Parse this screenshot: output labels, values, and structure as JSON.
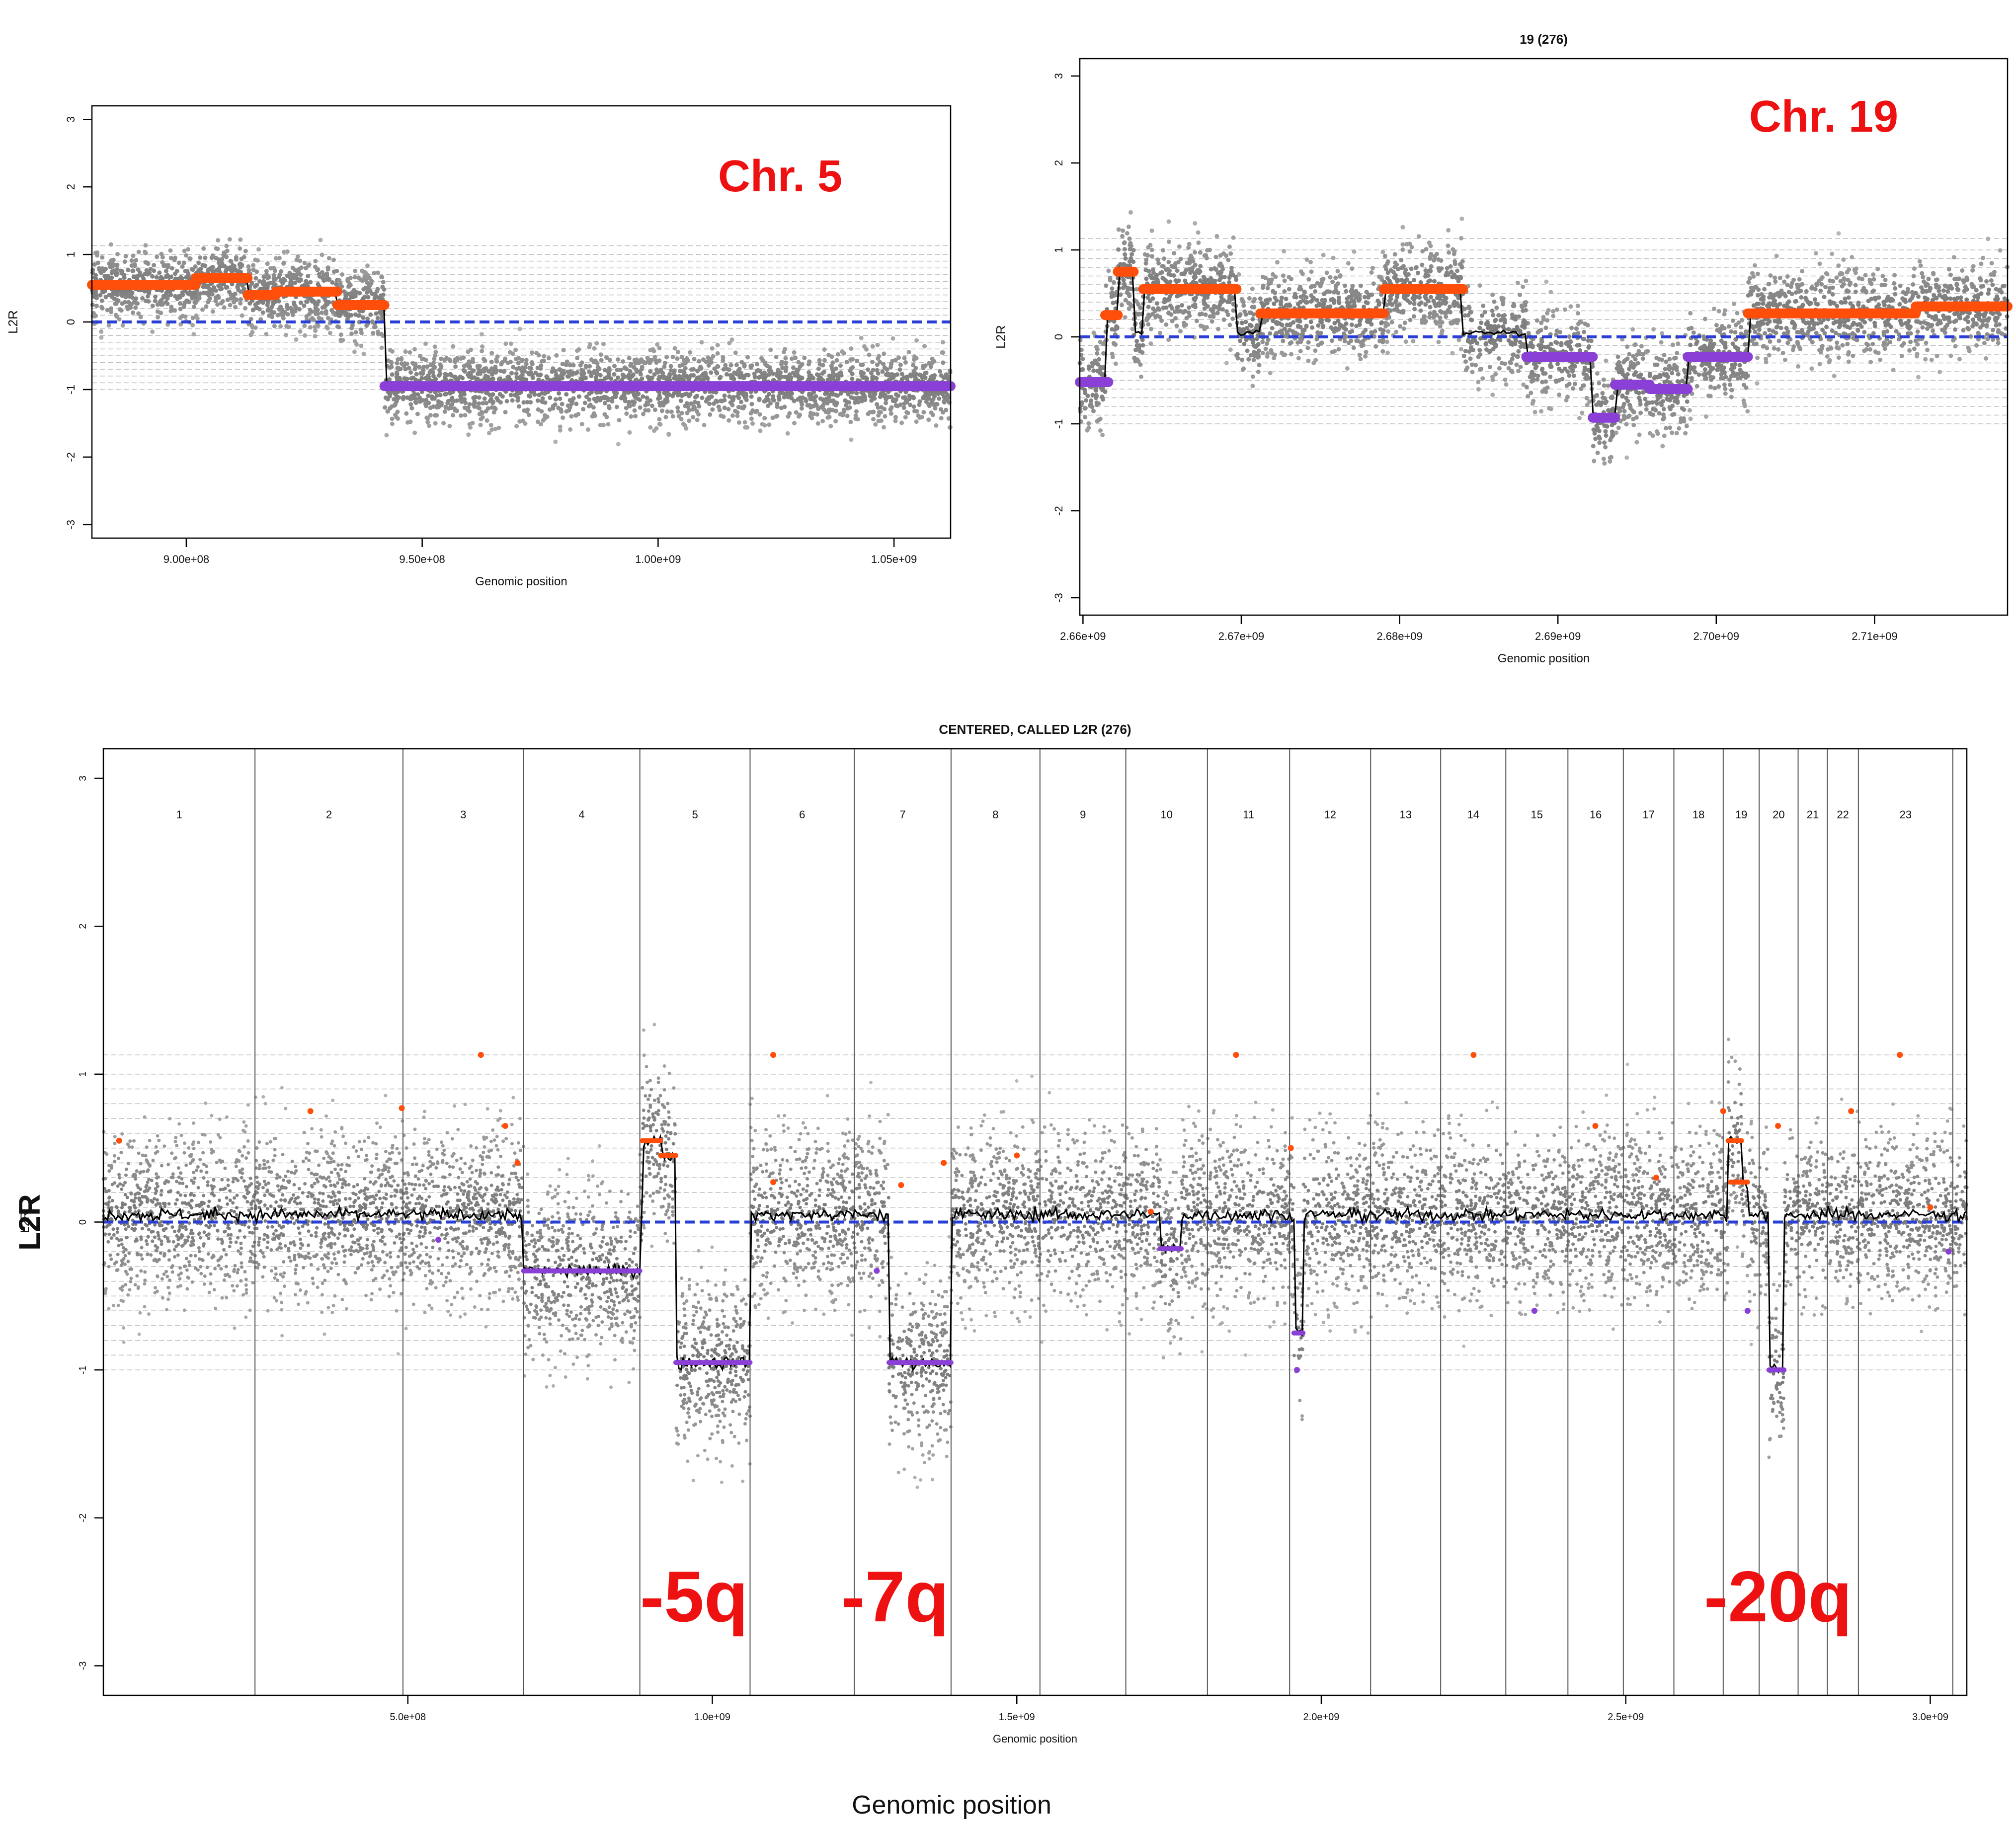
{
  "colors": {
    "gain": "#ff4e0a",
    "loss": "#8a3fd6",
    "baseline": "#2a3fd6",
    "smooth": "#000000",
    "annotation": "#ee1111",
    "points": "#a8a8a8"
  },
  "chart_data": [
    {
      "id": "chr5",
      "type": "scatter",
      "title": "",
      "xlabel": "Genomic position",
      "ylabel": "L2R",
      "xlim": [
        880000000.0,
        1062000000.0
      ],
      "ylim": [
        -3.2,
        3.2
      ],
      "xticks": [
        900000000.0,
        950000000.0,
        1000000000.0,
        1050000000.0
      ],
      "xtick_labels": [
        "9.00e+08",
        "9.50e+08",
        "1.00e+09",
        "1.05e+09"
      ],
      "yticks": [
        -3,
        -2,
        -1,
        0,
        1,
        2,
        3
      ],
      "annotation": "Chr. 5",
      "gain_segments": [
        {
          "x0": 880000000.0,
          "x1": 902000000.0,
          "y": 0.55
        },
        {
          "x0": 902000000.0,
          "x1": 913000000.0,
          "y": 0.65
        },
        {
          "x0": 913000000.0,
          "x1": 919000000.0,
          "y": 0.4
        },
        {
          "x0": 919000000.0,
          "x1": 932000000.0,
          "y": 0.45
        },
        {
          "x0": 932000000.0,
          "x1": 942000000.0,
          "y": 0.25
        }
      ],
      "loss_segments": [
        {
          "x0": 942000000.0,
          "x1": 1062000000.0,
          "y": -0.95
        }
      ]
    },
    {
      "id": "chr19",
      "type": "scatter",
      "title": "19 (276)",
      "xlabel": "Genomic position",
      "ylabel": "L2R",
      "xlim": [
        2659800000.0,
        2718400000.0
      ],
      "ylim": [
        -3.2,
        3.2
      ],
      "xticks": [
        2660000000.0,
        2670000000.0,
        2680000000.0,
        2690000000.0,
        2700000000.0,
        2710000000.0
      ],
      "xtick_labels": [
        "2.66e+09",
        "2.67e+09",
        "2.68e+09",
        "2.69e+09",
        "2.70e+09",
        "2.71e+09"
      ],
      "yticks": [
        -3,
        -2,
        -1,
        0,
        1,
        2,
        3
      ],
      "annotation": "Chr. 19",
      "gain_segments": [
        {
          "x0": 2661400000.0,
          "x1": 2662200000.0,
          "y": 0.25
        },
        {
          "x0": 2662200000.0,
          "x1": 2663200000.0,
          "y": 0.75
        },
        {
          "x0": 2663800000.0,
          "x1": 2669700000.0,
          "y": 0.55
        },
        {
          "x0": 2671200000.0,
          "x1": 2679000000.0,
          "y": 0.27
        },
        {
          "x0": 2679000000.0,
          "x1": 2684000000.0,
          "y": 0.55
        },
        {
          "x0": 2702000000.0,
          "x1": 2712600000.0,
          "y": 0.27
        },
        {
          "x0": 2712600000.0,
          "x1": 2718400000.0,
          "y": 0.35
        }
      ],
      "loss_segments": [
        {
          "x0": 2659800000.0,
          "x1": 2661600000.0,
          "y": -0.52
        },
        {
          "x0": 2688000000.0,
          "x1": 2692200000.0,
          "y": -0.23
        },
        {
          "x0": 2692200000.0,
          "x1": 2693600000.0,
          "y": -0.93
        },
        {
          "x0": 2693600000.0,
          "x1": 2695800000.0,
          "y": -0.55
        },
        {
          "x0": 2695800000.0,
          "x1": 2698200000.0,
          "y": -0.6
        },
        {
          "x0": 2698200000.0,
          "x1": 2702000000.0,
          "y": -0.23
        }
      ]
    },
    {
      "id": "genome",
      "type": "scatter",
      "title": "CENTERED, CALLED L2R (276)",
      "xlabel": "Genomic position",
      "ylabel": "L2R",
      "xlim": [
        0,
        3060000000.0
      ],
      "ylim": [
        -3.2,
        3.2
      ],
      "xticks": [
        500000000.0,
        1000000000.0,
        1500000000.0,
        2000000000.0,
        2500000000.0,
        3000000000.0
      ],
      "xtick_labels": [
        "5.0e+08",
        "1.0e+09",
        "1.5e+09",
        "2.0e+09",
        "2.5e+09",
        "3.0e+09"
      ],
      "yticks": [
        -3,
        -2,
        -1,
        0,
        1,
        2,
        3
      ],
      "chromosomes": [
        "1",
        "2",
        "3",
        "4",
        "5",
        "6",
        "7",
        "8",
        "9",
        "10",
        "11",
        "12",
        "13",
        "14",
        "15",
        "16",
        "17",
        "18",
        "19",
        "20",
        "21",
        "22",
        "23"
      ],
      "chromosome_bounds": [
        0,
        249000000.0,
        492000000.0,
        690000000.0,
        881000000.0,
        1062000000.0,
        1233000000.0,
        1392000000.0,
        1538000000.0,
        1679000000.0,
        1813000000.0,
        1948000000.0,
        2081000000.0,
        2196000000.0,
        2303000000.0,
        2405000000.0,
        2496000000.0,
        2579000000.0,
        2660000000.0,
        2719000000.0,
        2783000000.0,
        2831000000.0,
        2882000000.0,
        3037000000.0
      ],
      "annotations": [
        "-5q",
        "-7q",
        "-20q"
      ],
      "annotation_x": [
        970000000.0,
        1300000000.0,
        2750000000.0
      ],
      "annotation_y": -2.7,
      "gain_segments": [
        {
          "x0": 885000000.0,
          "x1": 915000000.0,
          "y": 0.55
        },
        {
          "x0": 915000000.0,
          "x1": 940000000.0,
          "y": 0.45
        },
        {
          "x0": 2668000000.0,
          "x1": 2690000000.0,
          "y": 0.55
        },
        {
          "x0": 2672000000.0,
          "x1": 2700000000.0,
          "y": 0.27
        }
      ],
      "loss_segments": [
        {
          "x0": 690000000.0,
          "x1": 881000000.0,
          "y": -0.33
        },
        {
          "x0": 940000000.0,
          "x1": 1062000000.0,
          "y": -0.95
        },
        {
          "x0": 1290000000.0,
          "x1": 1392000000.0,
          "y": -0.95
        },
        {
          "x0": 1735000000.0,
          "x1": 1770000000.0,
          "y": -0.18
        },
        {
          "x0": 2735000000.0,
          "x1": 2760000000.0,
          "y": -1.0
        },
        {
          "x0": 1955000000.0,
          "x1": 1970000000.0,
          "y": -0.75
        }
      ],
      "gain_dots": [
        {
          "x": 26000000.0,
          "y": 0.55
        },
        {
          "x": 340000000.0,
          "y": 0.75
        },
        {
          "x": 490000000.0,
          "y": 0.77
        },
        {
          "x": 620000000.0,
          "y": 1.13
        },
        {
          "x": 660000000.0,
          "y": 0.65
        },
        {
          "x": 680000000.0,
          "y": 0.4
        },
        {
          "x": 1100000000.0,
          "y": 1.13
        },
        {
          "x": 1100000000.0,
          "y": 0.27
        },
        {
          "x": 1310000000.0,
          "y": 0.25
        },
        {
          "x": 1380000000.0,
          "y": 0.4
        },
        {
          "x": 1500000000.0,
          "y": 0.45
        },
        {
          "x": 1720000000.0,
          "y": 0.07
        },
        {
          "x": 1860000000.0,
          "y": 1.13
        },
        {
          "x": 1950000000.0,
          "y": 0.5
        },
        {
          "x": 2250000000.0,
          "y": 1.13
        },
        {
          "x": 2450000000.0,
          "y": 0.65
        },
        {
          "x": 2550000000.0,
          "y": 0.3
        },
        {
          "x": 2660000000.0,
          "y": 0.75
        },
        {
          "x": 2750000000.0,
          "y": 0.65
        },
        {
          "x": 2870000000.0,
          "y": 0.75
        },
        {
          "x": 2950000000.0,
          "y": 1.13
        },
        {
          "x": 3000000000.0,
          "y": 0.1
        }
      ],
      "loss_dots": [
        {
          "x": 2350000000.0,
          "y": -0.6
        },
        {
          "x": 2700000000.0,
          "y": -0.6
        },
        {
          "x": 1960000000.0,
          "y": -1.0
        },
        {
          "x": 3030000000.0,
          "y": -0.2
        },
        {
          "x": 550000000.0,
          "y": -0.12
        },
        {
          "x": 1270000000.0,
          "y": -0.33
        }
      ]
    }
  ]
}
